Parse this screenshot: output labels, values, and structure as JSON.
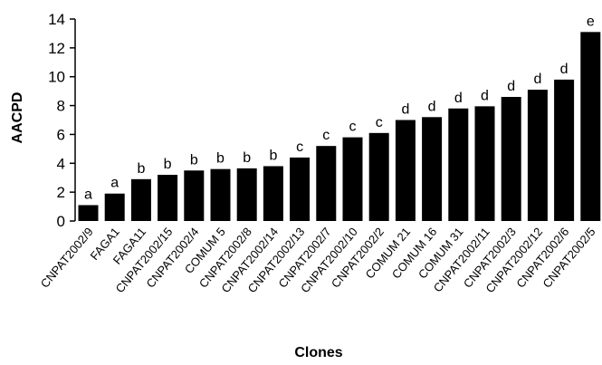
{
  "chart_data": {
    "type": "bar",
    "title": "",
    "xlabel": "Clones",
    "ylabel": "AACPD",
    "ylim": [
      0,
      14
    ],
    "yticks": [
      0,
      2,
      4,
      6,
      8,
      10,
      12,
      14
    ],
    "grid": false,
    "bar_color": "#000000",
    "categories": [
      "CNPAT2002/9",
      "FAGA1",
      "FAGA11",
      "CNPAT2002/15",
      "CNPAT2002/4",
      "COMUM 5",
      "CNPAT2002/8",
      "CNPAT2002/14",
      "CNPAT2002/13",
      "CNPAT2002/7",
      "CNPAT2002/10",
      "CNPAT2002/2",
      "COMUM 21",
      "COMUM 16",
      "COMUM 31",
      "CNPAT2002/11",
      "CNPAT2002/3",
      "CNPAT2002/12",
      "CNPAT2002/6",
      "CNPAT2002/5"
    ],
    "values": [
      1.1,
      1.9,
      2.9,
      3.2,
      3.5,
      3.6,
      3.65,
      3.8,
      4.4,
      5.2,
      5.8,
      6.1,
      7.0,
      7.2,
      7.8,
      7.95,
      8.6,
      9.1,
      9.8,
      13.1
    ],
    "group_labels": [
      "a",
      "a",
      "b",
      "b",
      "b",
      "b",
      "b",
      "b",
      "c",
      "c",
      "c",
      "c",
      "d",
      "d",
      "d",
      "d",
      "d",
      "d",
      "d",
      "e"
    ]
  }
}
